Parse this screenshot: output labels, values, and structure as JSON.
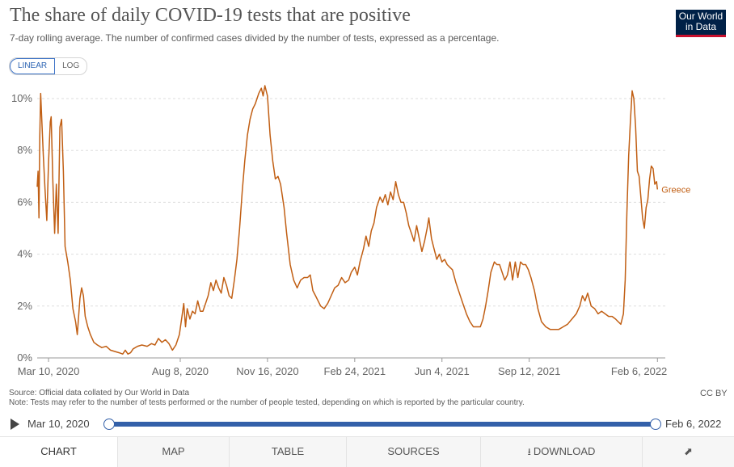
{
  "header": {
    "title": "The share of daily COVID-19 tests that are positive",
    "subtitle": "7-day rolling average. The number of confirmed cases divided by the number of tests, expressed as a percentage."
  },
  "logo": {
    "line1": "Our World",
    "line2": "in Data",
    "bg_color": "#002147",
    "accent_color": "#c8102e"
  },
  "scale_toggle": {
    "linear_label": "LINEAR",
    "log_label": "LOG",
    "selected": "LINEAR"
  },
  "chart_data": {
    "type": "line",
    "title": "The share of daily COVID-19 tests that are positive",
    "ylabel": "",
    "xlabel": "",
    "ylim": [
      0,
      10.5
    ],
    "xlim": [
      "2020-02-26",
      "2022-02-15"
    ],
    "y_ticks": [
      "0%",
      "2%",
      "4%",
      "6%",
      "8%",
      "10%"
    ],
    "x_ticks": [
      "Mar 10, 2020",
      "Aug 8, 2020",
      "Nov 16, 2020",
      "Feb 24, 2021",
      "Jun 4, 2021",
      "Sep 12, 2021",
      "Feb 6, 2022"
    ],
    "grid": true,
    "legend": "end-of-line label",
    "series": [
      {
        "name": "Greece",
        "color": "#c15f14",
        "points": [
          [
            "2020-02-26",
            6.6
          ],
          [
            "2020-02-27",
            7.2
          ],
          [
            "2020-02-28",
            5.4
          ],
          [
            "2020-02-29",
            8.5
          ],
          [
            "2020-03-01",
            10.2
          ],
          [
            "2020-03-02",
            9.4
          ],
          [
            "2020-03-04",
            7.8
          ],
          [
            "2020-03-06",
            6.5
          ],
          [
            "2020-03-08",
            5.3
          ],
          [
            "2020-03-10",
            7.5
          ],
          [
            "2020-03-12",
            9.1
          ],
          [
            "2020-03-13",
            9.3
          ],
          [
            "2020-03-15",
            6.8
          ],
          [
            "2020-03-17",
            4.8
          ],
          [
            "2020-03-19",
            6.7
          ],
          [
            "2020-03-21",
            4.8
          ],
          [
            "2020-03-23",
            8.9
          ],
          [
            "2020-03-25",
            9.2
          ],
          [
            "2020-03-27",
            7.2
          ],
          [
            "2020-03-29",
            4.3
          ],
          [
            "2020-04-01",
            3.7
          ],
          [
            "2020-04-04",
            3.0
          ],
          [
            "2020-04-07",
            1.9
          ],
          [
            "2020-04-10",
            1.4
          ],
          [
            "2020-04-12",
            0.9
          ],
          [
            "2020-04-15",
            2.3
          ],
          [
            "2020-04-17",
            2.7
          ],
          [
            "2020-04-19",
            2.4
          ],
          [
            "2020-04-21",
            1.6
          ],
          [
            "2020-04-24",
            1.2
          ],
          [
            "2020-04-27",
            0.9
          ],
          [
            "2020-05-01",
            0.6
          ],
          [
            "2020-05-05",
            0.5
          ],
          [
            "2020-05-10",
            0.4
          ],
          [
            "2020-05-15",
            0.45
          ],
          [
            "2020-05-20",
            0.3
          ],
          [
            "2020-05-25",
            0.25
          ],
          [
            "2020-05-30",
            0.2
          ],
          [
            "2020-06-03",
            0.15
          ],
          [
            "2020-06-06",
            0.3
          ],
          [
            "2020-06-09",
            0.15
          ],
          [
            "2020-06-12",
            0.2
          ],
          [
            "2020-06-15",
            0.35
          ],
          [
            "2020-06-20",
            0.45
          ],
          [
            "2020-06-25",
            0.5
          ],
          [
            "2020-07-01",
            0.45
          ],
          [
            "2020-07-06",
            0.55
          ],
          [
            "2020-07-10",
            0.5
          ],
          [
            "2020-07-14",
            0.75
          ],
          [
            "2020-07-18",
            0.6
          ],
          [
            "2020-07-22",
            0.7
          ],
          [
            "2020-07-26",
            0.55
          ],
          [
            "2020-07-30",
            0.3
          ],
          [
            "2020-08-03",
            0.5
          ],
          [
            "2020-08-07",
            0.9
          ],
          [
            "2020-08-10",
            1.6
          ],
          [
            "2020-08-12",
            2.1
          ],
          [
            "2020-08-14",
            1.2
          ],
          [
            "2020-08-16",
            1.9
          ],
          [
            "2020-08-19",
            1.5
          ],
          [
            "2020-08-22",
            1.8
          ],
          [
            "2020-08-25",
            1.7
          ],
          [
            "2020-08-28",
            2.2
          ],
          [
            "2020-08-31",
            1.8
          ],
          [
            "2020-09-03",
            1.8
          ],
          [
            "2020-09-06",
            2.1
          ],
          [
            "2020-09-09",
            2.4
          ],
          [
            "2020-09-12",
            2.9
          ],
          [
            "2020-09-15",
            2.6
          ],
          [
            "2020-09-18",
            3.0
          ],
          [
            "2020-09-21",
            2.7
          ],
          [
            "2020-09-24",
            2.5
          ],
          [
            "2020-09-27",
            3.1
          ],
          [
            "2020-09-30",
            2.8
          ],
          [
            "2020-10-03",
            2.4
          ],
          [
            "2020-10-06",
            2.3
          ],
          [
            "2020-10-09",
            3.0
          ],
          [
            "2020-10-12",
            3.8
          ],
          [
            "2020-10-15",
            5.0
          ],
          [
            "2020-10-18",
            6.4
          ],
          [
            "2020-10-21",
            7.6
          ],
          [
            "2020-10-24",
            8.6
          ],
          [
            "2020-10-27",
            9.2
          ],
          [
            "2020-10-30",
            9.6
          ],
          [
            "2020-11-02",
            9.8
          ],
          [
            "2020-11-06",
            10.2
          ],
          [
            "2020-11-09",
            10.4
          ],
          [
            "2020-11-11",
            10.1
          ],
          [
            "2020-11-13",
            10.5
          ],
          [
            "2020-11-16",
            10.1
          ],
          [
            "2020-11-19",
            8.6
          ],
          [
            "2020-11-22",
            7.6
          ],
          [
            "2020-11-25",
            6.9
          ],
          [
            "2020-11-28",
            7.0
          ],
          [
            "2020-12-01",
            6.7
          ],
          [
            "2020-12-05",
            5.8
          ],
          [
            "2020-12-08",
            4.8
          ],
          [
            "2020-12-12",
            3.6
          ],
          [
            "2020-12-16",
            3.0
          ],
          [
            "2020-12-20",
            2.7
          ],
          [
            "2020-12-24",
            3.0
          ],
          [
            "2020-12-28",
            3.1
          ],
          [
            "2021-01-01",
            3.1
          ],
          [
            "2021-01-04",
            3.2
          ],
          [
            "2021-01-07",
            2.6
          ],
          [
            "2021-01-10",
            2.4
          ],
          [
            "2021-01-13",
            2.2
          ],
          [
            "2021-01-16",
            2.0
          ],
          [
            "2021-01-20",
            1.9
          ],
          [
            "2021-01-24",
            2.1
          ],
          [
            "2021-01-28",
            2.4
          ],
          [
            "2021-02-01",
            2.7
          ],
          [
            "2021-02-05",
            2.8
          ],
          [
            "2021-02-09",
            3.1
          ],
          [
            "2021-02-13",
            2.9
          ],
          [
            "2021-02-17",
            3.0
          ],
          [
            "2021-02-20",
            3.3
          ],
          [
            "2021-02-24",
            3.5
          ],
          [
            "2021-02-27",
            3.2
          ],
          [
            "2021-03-02",
            3.7
          ],
          [
            "2021-03-06",
            4.2
          ],
          [
            "2021-03-09",
            4.7
          ],
          [
            "2021-03-12",
            4.3
          ],
          [
            "2021-03-15",
            4.9
          ],
          [
            "2021-03-18",
            5.2
          ],
          [
            "2021-03-21",
            5.8
          ],
          [
            "2021-03-25",
            6.2
          ],
          [
            "2021-03-28",
            6.0
          ],
          [
            "2021-03-31",
            6.3
          ],
          [
            "2021-04-03",
            5.9
          ],
          [
            "2021-04-06",
            6.4
          ],
          [
            "2021-04-09",
            6.1
          ],
          [
            "2021-04-12",
            6.8
          ],
          [
            "2021-04-15",
            6.3
          ],
          [
            "2021-04-18",
            6.0
          ],
          [
            "2021-04-21",
            6.0
          ],
          [
            "2021-04-24",
            5.6
          ],
          [
            "2021-04-27",
            5.1
          ],
          [
            "2021-04-30",
            4.8
          ],
          [
            "2021-05-03",
            4.5
          ],
          [
            "2021-05-06",
            5.1
          ],
          [
            "2021-05-09",
            4.6
          ],
          [
            "2021-05-12",
            4.1
          ],
          [
            "2021-05-15",
            4.5
          ],
          [
            "2021-05-18",
            5.0
          ],
          [
            "2021-05-20",
            5.4
          ],
          [
            "2021-05-23",
            4.6
          ],
          [
            "2021-05-26",
            4.2
          ],
          [
            "2021-05-29",
            3.8
          ],
          [
            "2021-06-01",
            4.0
          ],
          [
            "2021-06-04",
            3.7
          ],
          [
            "2021-06-07",
            3.8
          ],
          [
            "2021-06-10",
            3.6
          ],
          [
            "2021-06-13",
            3.5
          ],
          [
            "2021-06-16",
            3.4
          ],
          [
            "2021-06-20",
            2.9
          ],
          [
            "2021-06-24",
            2.5
          ],
          [
            "2021-06-28",
            2.1
          ],
          [
            "2021-07-02",
            1.7
          ],
          [
            "2021-07-06",
            1.4
          ],
          [
            "2021-07-10",
            1.2
          ],
          [
            "2021-07-14",
            1.2
          ],
          [
            "2021-07-18",
            1.2
          ],
          [
            "2021-07-21",
            1.5
          ],
          [
            "2021-07-24",
            2.0
          ],
          [
            "2021-07-27",
            2.6
          ],
          [
            "2021-07-30",
            3.3
          ],
          [
            "2021-08-03",
            3.7
          ],
          [
            "2021-08-06",
            3.6
          ],
          [
            "2021-08-09",
            3.6
          ],
          [
            "2021-08-12",
            3.3
          ],
          [
            "2021-08-15",
            3.0
          ],
          [
            "2021-08-18",
            3.2
          ],
          [
            "2021-08-21",
            3.7
          ],
          [
            "2021-08-24",
            3.0
          ],
          [
            "2021-08-27",
            3.7
          ],
          [
            "2021-08-30",
            3.1
          ],
          [
            "2021-09-02",
            3.7
          ],
          [
            "2021-09-05",
            3.6
          ],
          [
            "2021-09-08",
            3.6
          ],
          [
            "2021-09-11",
            3.4
          ],
          [
            "2021-09-14",
            3.1
          ],
          [
            "2021-09-18",
            2.6
          ],
          [
            "2021-09-22",
            1.9
          ],
          [
            "2021-09-26",
            1.4
          ],
          [
            "2021-10-01",
            1.2
          ],
          [
            "2021-10-06",
            1.1
          ],
          [
            "2021-10-11",
            1.1
          ],
          [
            "2021-10-16",
            1.1
          ],
          [
            "2021-10-21",
            1.2
          ],
          [
            "2021-10-26",
            1.3
          ],
          [
            "2021-10-31",
            1.5
          ],
          [
            "2021-11-05",
            1.7
          ],
          [
            "2021-11-09",
            2.0
          ],
          [
            "2021-11-12",
            2.4
          ],
          [
            "2021-11-15",
            2.2
          ],
          [
            "2021-11-18",
            2.5
          ],
          [
            "2021-11-22",
            2.0
          ],
          [
            "2021-11-26",
            1.9
          ],
          [
            "2021-11-30",
            1.7
          ],
          [
            "2021-12-04",
            1.8
          ],
          [
            "2021-12-08",
            1.7
          ],
          [
            "2021-12-12",
            1.6
          ],
          [
            "2021-12-16",
            1.6
          ],
          [
            "2021-12-20",
            1.5
          ],
          [
            "2021-12-23",
            1.4
          ],
          [
            "2021-12-26",
            1.3
          ],
          [
            "2021-12-29",
            1.7
          ],
          [
            "2021-12-31",
            3.0
          ],
          [
            "2022-01-02",
            5.6
          ],
          [
            "2022-01-04",
            7.8
          ],
          [
            "2022-01-06",
            9.1
          ],
          [
            "2022-01-08",
            10.3
          ],
          [
            "2022-01-10",
            10.0
          ],
          [
            "2022-01-12",
            8.9
          ],
          [
            "2022-01-14",
            7.2
          ],
          [
            "2022-01-16",
            7.0
          ],
          [
            "2022-01-18",
            6.2
          ],
          [
            "2022-01-20",
            5.4
          ],
          [
            "2022-01-22",
            5.0
          ],
          [
            "2022-01-24",
            5.8
          ],
          [
            "2022-01-26",
            6.1
          ],
          [
            "2022-01-28",
            6.9
          ],
          [
            "2022-01-30",
            7.4
          ],
          [
            "2022-02-01",
            7.3
          ],
          [
            "2022-02-03",
            6.7
          ],
          [
            "2022-02-05",
            6.8
          ],
          [
            "2022-02-06",
            6.5
          ]
        ]
      }
    ]
  },
  "footer": {
    "source": "Source: Official data collated by Our World in Data",
    "note": "Note: Tests may refer to the number of tests performed or the number of people tested, depending on which is reported by the particular country.",
    "license": "CC BY"
  },
  "timeline": {
    "start_label": "Mar 10, 2020",
    "end_label": "Feb 6, 2022",
    "start_fraction": 0.0,
    "end_fraction": 1.0
  },
  "tabs": [
    {
      "label": "CHART",
      "active": true
    },
    {
      "label": "MAP",
      "active": false
    },
    {
      "label": "TABLE",
      "active": false
    },
    {
      "label": "SOURCES",
      "active": false
    },
    {
      "label": "DOWNLOAD",
      "active": false,
      "icon": "download-icon"
    },
    {
      "label": "",
      "active": false,
      "icon": "share-icon"
    }
  ]
}
